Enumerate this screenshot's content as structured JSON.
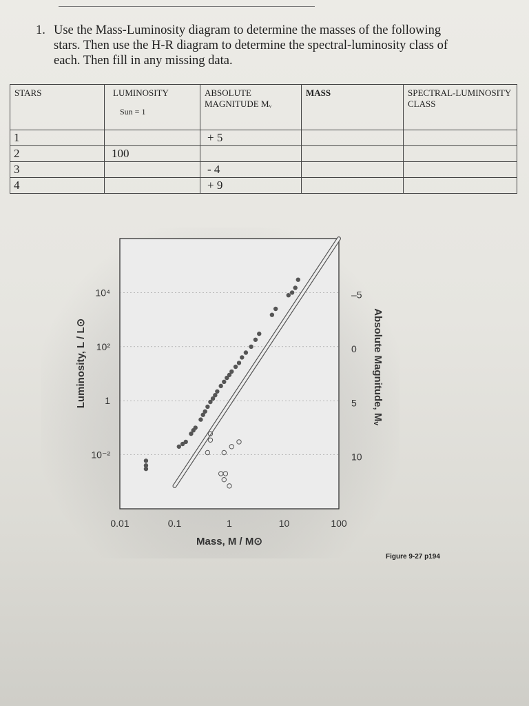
{
  "question": {
    "number": "1.",
    "text": "Use the Mass-Luminosity diagram to determine the masses of the following stars. Then use the H-R diagram to determine the spectral-luminosity class of each. Then fill in any missing data."
  },
  "table": {
    "headers": {
      "stars": "STARS",
      "luminosity": "LUMINOSITY",
      "luminosity_sub": "Sun = 1",
      "abs_mag": "ABSOLUTE MAGNITUDE Mᵥ",
      "mass": "MASS",
      "class": "SPECTRAL-LUMINOSITY CLASS"
    },
    "rows": [
      {
        "star": "1",
        "luminosity": "",
        "abs_mag": "+ 5",
        "mass": "",
        "class": ""
      },
      {
        "star": "2",
        "luminosity": "100",
        "abs_mag": "",
        "mass": "",
        "class": ""
      },
      {
        "star": "3",
        "luminosity": "",
        "abs_mag": "- 4",
        "mass": "",
        "class": ""
      },
      {
        "star": "4",
        "luminosity": "",
        "abs_mag": "+ 9",
        "mass": "",
        "class": ""
      }
    ]
  },
  "chart_data": {
    "type": "scatter",
    "title": "",
    "xlabel": "Mass, M / M⊙",
    "ylabel": "Luminosity, L / L⊙",
    "y2label": "Absolute Magnitude, Mᵥ",
    "x_scale": "log",
    "y_scale": "log",
    "xlim": [
      0.01,
      100
    ],
    "ylim": [
      0.0001,
      1000000
    ],
    "x_ticks": [
      0.01,
      0.1,
      1,
      10,
      100
    ],
    "x_tick_labels": [
      "0.01",
      "0.1",
      "1",
      "10",
      "100"
    ],
    "y_ticks": [
      10000,
      100,
      1,
      0.01
    ],
    "y_tick_labels": [
      "10⁴",
      "10²",
      "1",
      "10⁻²"
    ],
    "y2_ticks": [
      -5,
      0,
      5,
      10
    ],
    "y2_tick_labels": [
      "–5",
      "0",
      "5",
      "10"
    ],
    "grid": true,
    "series": [
      {
        "name": "",
        "marker": "filled",
        "color": "#555555",
        "points": [
          [
            0.03,
            0.003
          ],
          [
            0.03,
            0.004
          ],
          [
            0.03,
            0.006
          ],
          [
            0.12,
            0.02
          ],
          [
            0.14,
            0.025
          ],
          [
            0.16,
            0.03
          ],
          [
            0.2,
            0.06
          ],
          [
            0.22,
            0.08
          ],
          [
            0.24,
            0.1
          ],
          [
            0.3,
            0.2
          ],
          [
            0.33,
            0.3
          ],
          [
            0.36,
            0.4
          ],
          [
            0.4,
            0.6
          ],
          [
            0.45,
            0.9
          ],
          [
            0.5,
            1.2
          ],
          [
            0.55,
            1.6
          ],
          [
            0.6,
            2.2
          ],
          [
            0.7,
            3.5
          ],
          [
            0.8,
            5
          ],
          [
            0.9,
            7
          ],
          [
            1.0,
            9
          ],
          [
            1.1,
            12
          ],
          [
            1.3,
            18
          ],
          [
            1.5,
            25
          ],
          [
            1.7,
            40
          ],
          [
            2.0,
            60
          ],
          [
            2.5,
            100
          ],
          [
            3.0,
            180
          ],
          [
            3.5,
            300
          ],
          [
            6,
            1500
          ],
          [
            7,
            2500
          ],
          [
            12,
            8000
          ],
          [
            14,
            10000
          ],
          [
            16,
            15000
          ],
          [
            18,
            30000
          ]
        ]
      },
      {
        "name": "",
        "marker": "open",
        "color": "#555555",
        "points": [
          [
            0.45,
            0.06
          ],
          [
            0.45,
            0.035
          ],
          [
            0.4,
            0.012
          ],
          [
            0.8,
            0.012
          ],
          [
            1.1,
            0.02
          ],
          [
            1.5,
            0.03
          ],
          [
            0.7,
            0.002
          ],
          [
            0.85,
            0.002
          ],
          [
            0.8,
            0.0012
          ],
          [
            1.0,
            0.0007
          ]
        ]
      }
    ],
    "fit_line": [
      [
        0.1,
        0.0007
      ],
      [
        100,
        1000000
      ]
    ]
  },
  "figure_caption": "Figure 9-27 p194"
}
